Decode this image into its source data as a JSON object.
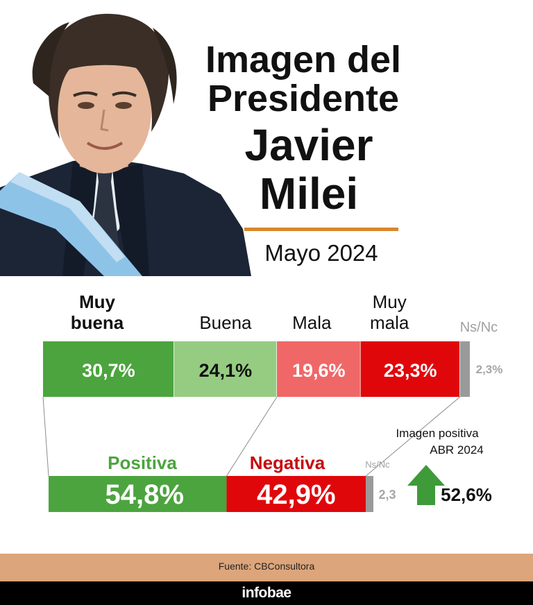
{
  "header": {
    "title_line1": "Imagen del",
    "title_line2": "Presidente",
    "title_line3": "Javier",
    "title_line4": "Milei",
    "subtitle": "Mayo 2024"
  },
  "chart_data": [
    {
      "type": "bar",
      "orientation": "horizontal-stacked",
      "categories": [
        "Muy buena",
        "Buena",
        "Mala",
        "Muy mala",
        "Ns/Nc"
      ],
      "values": [
        30.7,
        24.1,
        19.6,
        23.3,
        2.3
      ],
      "labels": [
        "30,7%",
        "24,1%",
        "19,6%",
        "23,3%",
        "2,3%"
      ],
      "colors": [
        "#4ca43e",
        "#95cc82",
        "#ef6867",
        "#e0070b",
        "#9a9a9a"
      ]
    },
    {
      "type": "bar",
      "orientation": "horizontal-stacked",
      "categories": [
        "Positiva",
        "Negativa",
        "Ns/Nc"
      ],
      "values": [
        54.8,
        42.9,
        2.3
      ],
      "labels": [
        "54,8%",
        "42,9%",
        "2,3"
      ],
      "colors": [
        "#4ca43e",
        "#e0070b",
        "#9a9a9a"
      ]
    }
  ],
  "comparison": {
    "label_line1": "Imagen positiva",
    "label_line2": "ABR 2024",
    "value": "52,6%",
    "arrow": "arrow-up-icon",
    "arrow_color": "#3f9a39"
  },
  "footer": {
    "source": "Fuente: CBConsultora",
    "brand": "infobae"
  }
}
